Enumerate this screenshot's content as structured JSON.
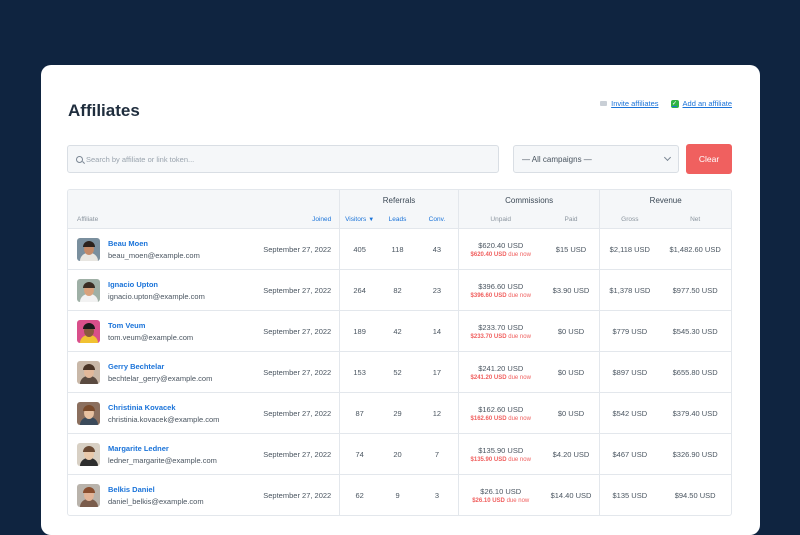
{
  "page": {
    "title": "Affiliates"
  },
  "actions": {
    "invite_label": "Invite affiliates",
    "add_label": "Add an affiliate"
  },
  "filters": {
    "search_placeholder": "Search by affiliate or link token...",
    "campaign_selected": "— All campaigns —",
    "clear_label": "Clear"
  },
  "table": {
    "groups": {
      "referrals": "Referrals",
      "commissions": "Commissions",
      "revenue": "Revenue"
    },
    "columns": {
      "affiliate": "Affiliate",
      "joined": "Joined",
      "visitors": "Visitors",
      "leads": "Leads",
      "conv": "Conv.",
      "unpaid": "Unpaid",
      "paid": "Paid",
      "gross": "Gross",
      "net": "Net"
    },
    "due_suffix": "due now",
    "rows": [
      {
        "name": "Beau Moen",
        "email": "beau_moen@example.com",
        "joined": "September 27, 2022",
        "visitors": "405",
        "leads": "118",
        "conv": "43",
        "unpaid": "$620.40 USD",
        "due": "$620.40 USD",
        "paid": "$15 USD",
        "gross": "$2,118 USD",
        "net": "$1,482.60 USD"
      },
      {
        "name": "Ignacio Upton",
        "email": "ignacio.upton@example.com",
        "joined": "September 27, 2022",
        "visitors": "264",
        "leads": "82",
        "conv": "23",
        "unpaid": "$396.60 USD",
        "due": "$396.60 USD",
        "paid": "$3.90 USD",
        "gross": "$1,378 USD",
        "net": "$977.50 USD"
      },
      {
        "name": "Tom Veum",
        "email": "tom.veum@example.com",
        "joined": "September 27, 2022",
        "visitors": "189",
        "leads": "42",
        "conv": "14",
        "unpaid": "$233.70 USD",
        "due": "$233.70 USD",
        "paid": "$0 USD",
        "gross": "$779 USD",
        "net": "$545.30 USD"
      },
      {
        "name": "Gerry Bechtelar",
        "email": "bechtelar_gerry@example.com",
        "joined": "September 27, 2022",
        "visitors": "153",
        "leads": "52",
        "conv": "17",
        "unpaid": "$241.20 USD",
        "due": "$241.20 USD",
        "paid": "$0 USD",
        "gross": "$897 USD",
        "net": "$655.80 USD"
      },
      {
        "name": "Christinia Kovacek",
        "email": "christinia.kovacek@example.com",
        "joined": "September 27, 2022",
        "visitors": "87",
        "leads": "29",
        "conv": "12",
        "unpaid": "$162.60 USD",
        "due": "$162.60 USD",
        "paid": "$0 USD",
        "gross": "$542 USD",
        "net": "$379.40 USD"
      },
      {
        "name": "Margarite Ledner",
        "email": "ledner_margarite@example.com",
        "joined": "September 27, 2022",
        "visitors": "74",
        "leads": "20",
        "conv": "7",
        "unpaid": "$135.90 USD",
        "due": "$135.90 USD",
        "paid": "$4.20 USD",
        "gross": "$467 USD",
        "net": "$326.90 USD"
      },
      {
        "name": "Belkis Daniel",
        "email": "daniel_belkis@example.com",
        "joined": "September 27, 2022",
        "visitors": "62",
        "leads": "9",
        "conv": "3",
        "unpaid": "$26.10 USD",
        "due": "$26.10 USD",
        "paid": "$14.40 USD",
        "gross": "$135 USD",
        "net": "$94.50 USD"
      }
    ]
  },
  "colors": {
    "background": "#0f2440",
    "accent": "#1a73d9",
    "danger": "#f0605f"
  }
}
